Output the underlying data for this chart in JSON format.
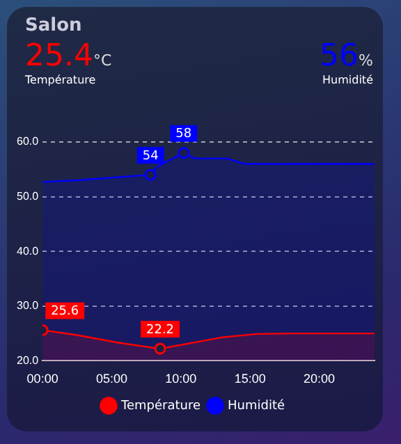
{
  "chart_data": {
    "type": "area",
    "title": "Salon",
    "annotations": [
      "25.4",
      "°C",
      "Température",
      "56",
      "%",
      "Humidité"
    ],
    "xlim": [
      0,
      24
    ],
    "xticks": [
      {
        "value": 0,
        "label": "00:00"
      },
      {
        "value": 5,
        "label": "05:00"
      },
      {
        "value": 10,
        "label": "10:00"
      },
      {
        "value": 15,
        "label": "15:00"
      },
      {
        "value": 20,
        "label": "20:00"
      }
    ],
    "ylim": [
      20,
      60
    ],
    "yticks": [
      {
        "value": 20,
        "label": "20.0"
      },
      {
        "value": 30,
        "label": "30.0"
      },
      {
        "value": 40,
        "label": "40.0"
      },
      {
        "value": 50,
        "label": "50.0"
      },
      {
        "value": 60,
        "label": "60.0"
      }
    ],
    "grid": "y",
    "legend": "bottom",
    "line_style": "solid",
    "series": [
      {
        "name": "Température",
        "color": "#ff0000",
        "x": [
          0,
          2.5,
          5.5,
          8.5,
          11.5,
          13,
          15.5,
          18,
          24
        ],
        "values": [
          25.6,
          24.7,
          23.3,
          22.2,
          23.6,
          24.3,
          24.9,
          25,
          25
        ],
        "value_labels": [
          "25.6",
          null,
          null,
          "22.2",
          null,
          null,
          null,
          null,
          null
        ]
      },
      {
        "name": "Humidité",
        "color": "#0000ff",
        "x": [
          0,
          2.5,
          7.8,
          8.3,
          10.2,
          11,
          13.3,
          14.6,
          24
        ],
        "values": [
          52.7,
          53,
          54,
          55.5,
          58,
          57,
          57,
          56,
          56
        ],
        "value_labels": [
          null,
          null,
          "54",
          null,
          "58",
          null,
          null,
          null,
          null
        ]
      }
    ]
  }
}
